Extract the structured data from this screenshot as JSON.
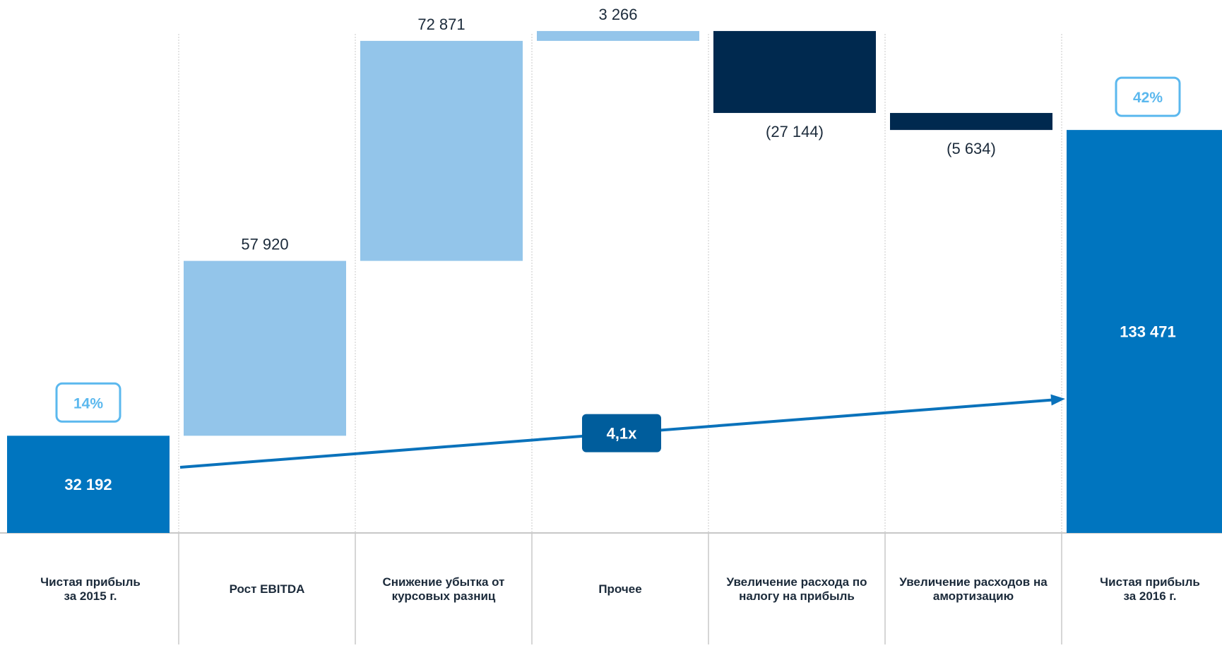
{
  "chart_data": {
    "type": "waterfall",
    "categories": [
      "Чистая прибыль\nза 2015 г.",
      "Рост EBITDA",
      "Снижение убытка от\nкурсовых разниц",
      "Прочее",
      "Увеличение расхода по\nналогу на прибыль",
      "Увеличение расходов на\nамортизацию",
      "Чистая прибыль\nза 2016 г."
    ],
    "values": [
      32192,
      57920,
      72871,
      3266,
      -27144,
      -5634,
      133471
    ],
    "value_labels": [
      "32 192",
      "57 920",
      "72 871",
      "3 266",
      "(27 144)",
      "(5 634)",
      "133 471"
    ],
    "bar_kinds": [
      "total",
      "increase",
      "increase",
      "increase",
      "decrease",
      "decrease",
      "total"
    ],
    "margin_badges": [
      {
        "bar": 0,
        "label": "14%"
      },
      {
        "bar": 6,
        "label": "42%"
      }
    ],
    "growth_arrow": {
      "from_bar": 0,
      "to_bar": 6,
      "label": "4,1x"
    },
    "ylim": [
      0,
      166000
    ],
    "colors": {
      "total": "#0075bf",
      "increase": "#93c5ea",
      "decrease": "#00294f",
      "badge_border": "#5bb8ee",
      "badge_text": "#5bb8ee",
      "arrow": "#0a72bb",
      "arrow_label_bg": "#005d9c",
      "grid": "#c8c8c8",
      "label_text": "#1b2a3a"
    }
  }
}
